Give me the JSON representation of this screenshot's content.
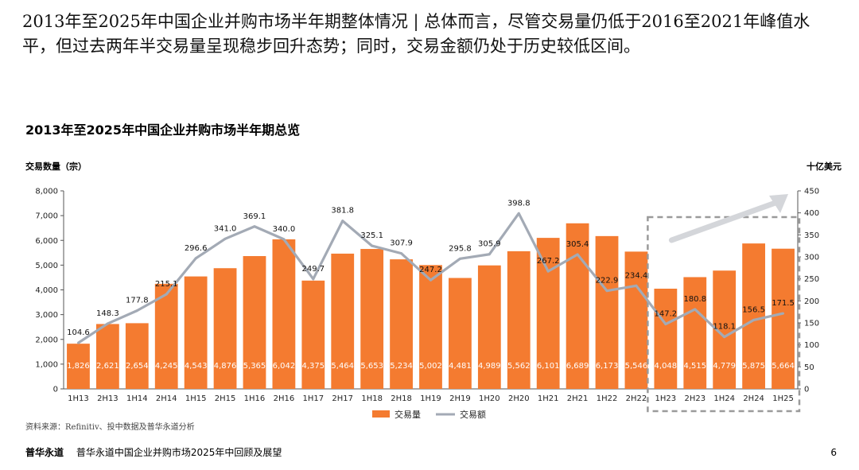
{
  "page": {
    "headline": "2013年至2025年中国企业并购市场半年期整体情况 | 总体而言，尽管交易量仍低于2016至2021年峰值水平，但过去两年半交易量呈现稳步回升态势；同时，交易金额仍处于历史较低区间。",
    "source": "资料来源：Refinitiv、投中数据及普华永道分析",
    "footer_brand": "普华永道",
    "footer_title": "普华永道中国企业并购市场2025年中回顾及展望",
    "page_number": "6"
  },
  "chart_data": {
    "type": "bar+line",
    "title": "2013年至2025年中国企业并购市场半年期总览",
    "ylabel_left": "交易数量（宗）",
    "ylabel_right": "十亿美元",
    "categories": [
      "1H13",
      "2H13",
      "1H14",
      "2H14",
      "1H15",
      "2H15",
      "1H16",
      "2H16",
      "1H17",
      "2H17",
      "1H18",
      "2H18",
      "1H19",
      "2H19",
      "1H20",
      "2H20",
      "1H21",
      "2H21",
      "1H22",
      "2H22",
      "1H23",
      "2H23",
      "1H24",
      "2H24",
      "1H25"
    ],
    "series": [
      {
        "name": "交易量",
        "type": "bar",
        "axis": "left",
        "color": "#f47b30",
        "values": [
          1826,
          2621,
          2654,
          4245,
          4543,
          4876,
          5365,
          6042,
          4375,
          5464,
          5653,
          5234,
          5002,
          4481,
          4989,
          5562,
          6101,
          6689,
          6173,
          5546,
          4048,
          4515,
          4779,
          5875,
          5664
        ],
        "labels": [
          "1,826",
          "2,621",
          "2,654",
          "4,245",
          "4,543",
          "4,876",
          "5,365",
          "6,042",
          "4,375",
          "5,464",
          "5,653",
          "5,234",
          "5,002",
          "4,481",
          "4,989",
          "5,562",
          "6,101",
          "6,689",
          "6,173",
          "5,546",
          "4,048",
          "4,515",
          "4,779",
          "5,875",
          "5,664"
        ]
      },
      {
        "name": "交易额",
        "type": "line",
        "axis": "right",
        "color": "#a3aab5",
        "values": [
          104.6,
          148.3,
          177.8,
          215.1,
          296.6,
          341.0,
          369.1,
          340.0,
          249.7,
          381.8,
          325.1,
          307.9,
          247.2,
          295.8,
          305.9,
          398.8,
          267.2,
          305.4,
          222.9,
          234.4,
          147.2,
          180.8,
          118.1,
          156.5,
          171.5
        ],
        "labels": [
          "104.6",
          "148.3",
          "177.8",
          "215.1",
          "296.6",
          "341.0",
          "369.1",
          "340.0",
          "249.7",
          "381.8",
          "325.1",
          "307.9",
          "247.2",
          "295.8",
          "305.9",
          "398.8",
          "267.2",
          "305.4",
          "222.9",
          "234.4",
          "147.2",
          "180.8",
          "118.1",
          "156.5",
          "171.5"
        ]
      }
    ],
    "ylim_left": [
      0,
      8000
    ],
    "ylim_right": [
      0,
      450
    ],
    "yticks_left": [
      "0",
      "1,000",
      "2,000",
      "3,000",
      "4,000",
      "5,000",
      "6,000",
      "7,000",
      "8,000"
    ],
    "yticks_right": [
      "0",
      "50",
      "100",
      "150",
      "200",
      "250",
      "300",
      "350",
      "400",
      "450"
    ],
    "legend_placement": "bottom-center",
    "highlight_range": [
      "1H23",
      "1H25"
    ],
    "grid": false
  }
}
